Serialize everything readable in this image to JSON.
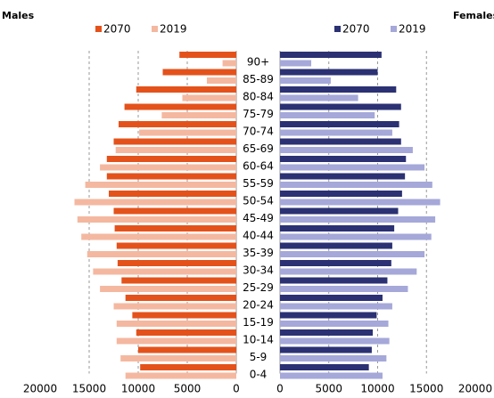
{
  "chart_data": {
    "type": "pyramid",
    "categories": [
      "90+",
      "85-89",
      "80-84",
      "75-79",
      "70-74",
      "65-69",
      "60-64",
      "55-59",
      "50-54",
      "45-49",
      "40-44",
      "35-39",
      "30-34",
      "25-29",
      "20-24",
      "15-19",
      "10-14",
      "5-9",
      "0-4"
    ],
    "grid": true,
    "panels": [
      {
        "title": "Males",
        "side": "left",
        "xlim": [
          0,
          20000
        ],
        "xticks": [
          20000,
          15000,
          10000,
          5000,
          0
        ],
        "series": [
          {
            "name": "2070",
            "color": "#e4521b",
            "values": [
              5800,
              7500,
              10200,
              11400,
              12000,
              12500,
              13200,
              13200,
              13000,
              12500,
              12400,
              12200,
              12100,
              11700,
              11300,
              10600,
              10200,
              10000,
              9800
            ]
          },
          {
            "name": "2019",
            "color": "#f4b8a0",
            "values": [
              1400,
              3000,
              5500,
              7600,
              9900,
              12300,
              13900,
              15400,
              16500,
              16200,
              15800,
              15200,
              14600,
              13900,
              12500,
              12200,
              12200,
              11800,
              11300
            ]
          }
        ]
      },
      {
        "title": "Females",
        "side": "right",
        "xlim": [
          0,
          20000
        ],
        "xticks": [
          0,
          5000,
          10000,
          15000,
          20000
        ],
        "series": [
          {
            "name": "2070",
            "color": "#2b3173",
            "values": [
              10400,
              10000,
              11900,
              12400,
              12200,
              12400,
              12900,
              12800,
              12500,
              12100,
              11700,
              11500,
              11400,
              11000,
              10500,
              9900,
              9500,
              9400,
              9100
            ]
          },
          {
            "name": "2019",
            "color": "#a5a8d8",
            "values": [
              3200,
              5200,
              8000,
              9700,
              11500,
              13600,
              14800,
              15600,
              16400,
              15900,
              15500,
              14800,
              14000,
              13100,
              11500,
              11100,
              11200,
              10900,
              10500
            ]
          }
        ]
      }
    ]
  }
}
